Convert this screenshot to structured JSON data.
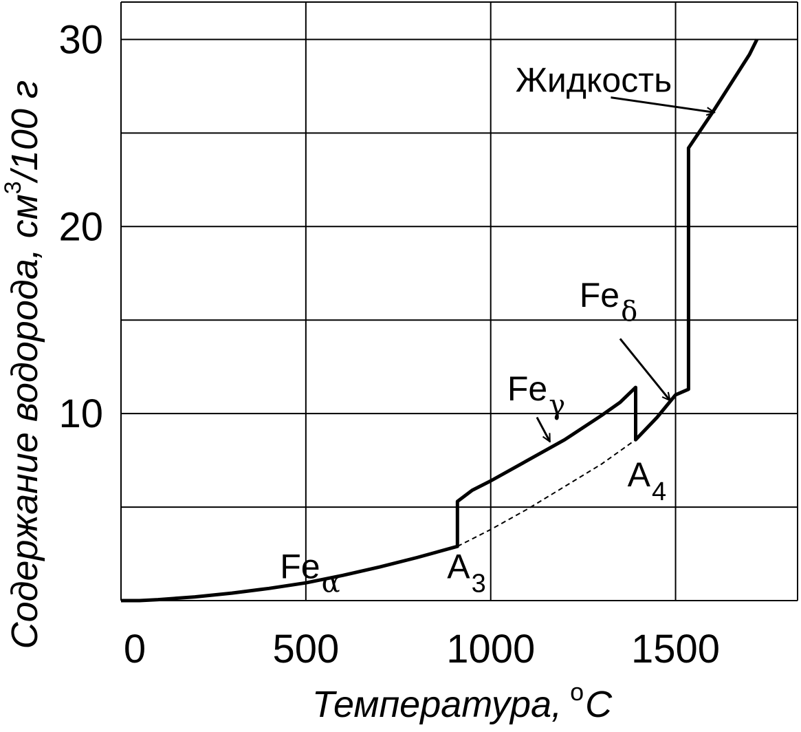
{
  "chart_data": {
    "type": "line",
    "title": "",
    "xlabel": "Температура,",
    "xlabel_unit_degree": "o",
    "xlabel_unit": "C",
    "ylabel": "Содержание водорода, см",
    "ylabel_sup": "3",
    "ylabel_unit": "/100 г",
    "xlim": [
      0,
      1830
    ],
    "ylim": [
      0,
      32
    ],
    "xgrid": [
      0,
      500,
      1000,
      1500,
      1830
    ],
    "ygrid": [
      0,
      5,
      10,
      15,
      20,
      25,
      30,
      32
    ],
    "xticks": [
      {
        "value": 0,
        "label": "0"
      },
      {
        "value": 500,
        "label": "500"
      },
      {
        "value": 1000,
        "label": "1000"
      },
      {
        "value": 1500,
        "label": "1500"
      }
    ],
    "yticks": [
      {
        "value": 10,
        "label": "10"
      },
      {
        "value": 20,
        "label": "20"
      },
      {
        "value": 30,
        "label": "30"
      }
    ],
    "grid": true,
    "legend": "none",
    "series": [
      {
        "name": "",
        "style": "solid",
        "points": [
          [
            0,
            0.0
          ],
          [
            50,
            0.0
          ],
          [
            100,
            0.05
          ],
          [
            200,
            0.2
          ],
          [
            300,
            0.4
          ],
          [
            400,
            0.65
          ],
          [
            500,
            0.95
          ],
          [
            600,
            1.35
          ],
          [
            700,
            1.8
          ],
          [
            800,
            2.3
          ],
          [
            910,
            2.9
          ],
          [
            910,
            5.3
          ],
          [
            950,
            5.9
          ],
          [
            1000,
            6.4
          ],
          [
            1100,
            7.5
          ],
          [
            1200,
            8.6
          ],
          [
            1300,
            9.9
          ],
          [
            1350,
            10.6
          ],
          [
            1392,
            11.4
          ],
          [
            1392,
            8.6
          ],
          [
            1450,
            9.8
          ],
          [
            1500,
            11.0
          ],
          [
            1535,
            11.3
          ],
          [
            1535,
            24.2
          ],
          [
            1600,
            26.1
          ],
          [
            1700,
            29.2
          ],
          [
            1720,
            30.0
          ]
        ]
      },
      {
        "name": "",
        "style": "dashed",
        "points": [
          [
            910,
            2.9
          ],
          [
            1000,
            3.8
          ],
          [
            1100,
            4.9
          ],
          [
            1200,
            6.1
          ],
          [
            1300,
            7.3
          ],
          [
            1392,
            8.6
          ]
        ]
      }
    ],
    "annotations": [
      {
        "text": "Жидкость",
        "x": 1490,
        "y": 27.2,
        "anchor": "end",
        "subscript": "",
        "arrow_to": [
          1605,
          26.1
        ],
        "arrow_from": [
          1325,
          26.9
        ]
      },
      {
        "text": "Fe",
        "x": 1240,
        "y": 15.7,
        "anchor": "start",
        "subscript": "δ",
        "arrow_to": [
          1485,
          10.7
        ],
        "arrow_from": [
          1350,
          14.0
        ]
      },
      {
        "text": "Fe",
        "x": 1045,
        "y": 10.7,
        "anchor": "start",
        "subscript": "γ",
        "arrow_to": [
          1160,
          8.5
        ],
        "arrow_from": [
          1125,
          9.8
        ]
      },
      {
        "text": "Fe",
        "x": 430,
        "y": 1.2,
        "anchor": "start",
        "subscript": "α"
      },
      {
        "text": "A",
        "x": 882,
        "y": 1.2,
        "anchor": "start",
        "subscript": "3"
      },
      {
        "text": "A",
        "x": 1370,
        "y": 6.1,
        "anchor": "start",
        "subscript": "4"
      }
    ]
  }
}
